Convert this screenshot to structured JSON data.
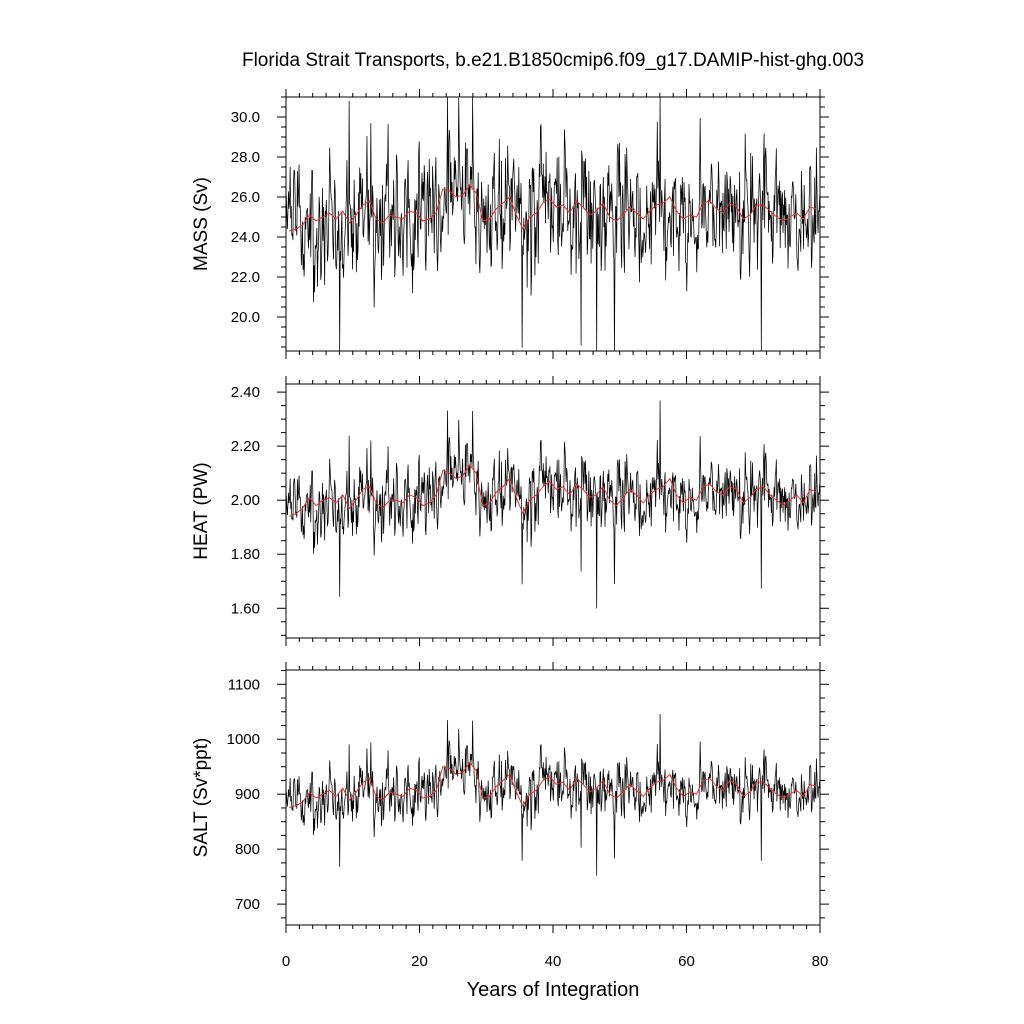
{
  "chart_data": {
    "type": "line",
    "title": "Florida Strait Transports, b.e21.B1850cmip6.f09_g17.DAMIP-hist-ghg.003",
    "xlabel": "Years of Integration",
    "xlim": [
      0,
      80
    ],
    "xticks": [
      0,
      20,
      40,
      60,
      80
    ],
    "xtick_labels": [
      "0",
      "20",
      "40",
      "60",
      "80"
    ],
    "grid": false,
    "colors": {
      "monthly": "#000000",
      "annual_mean": "#e03030"
    },
    "panels": [
      {
        "ylabel": "MASS (Sv)",
        "ylim": [
          18.3,
          31.0
        ],
        "yticks": [
          20,
          22,
          24,
          26,
          28,
          30
        ],
        "ytick_labels": [
          "20.0",
          "22.0",
          "24.0",
          "26.0",
          "28.0",
          "30.0"
        ],
        "annual_mean": [
          24.3,
          24.4,
          24.6,
          25.1,
          24.8,
          25.0,
          25.2,
          24.9,
          25.3,
          24.7,
          25.1,
          25.6,
          25.8,
          24.9,
          24.7,
          25.1,
          25.0,
          24.9,
          25.3,
          25.2,
          24.8,
          24.9,
          25.2,
          26.4,
          26.3,
          26.0,
          26.1,
          26.6,
          26.2,
          24.8,
          24.9,
          25.4,
          25.7,
          26.0,
          25.1,
          24.4,
          25.0,
          25.2,
          25.7,
          25.9,
          25.5,
          25.6,
          25.2,
          25.8,
          25.5,
          25.1,
          25.3,
          25.7,
          25.0,
          24.8,
          25.1,
          25.5,
          25.2,
          24.9,
          25.3,
          25.6,
          25.7,
          26.0,
          25.3,
          24.9,
          25.1,
          25.0,
          25.7,
          25.8,
          25.4,
          25.2,
          25.7,
          25.5,
          24.9,
          25.1,
          25.6,
          25.6,
          25.3,
          25.0,
          24.8,
          25.0,
          25.2,
          24.9,
          25.5,
          25.4
        ]
      },
      {
        "ylabel": "HEAT (PW)",
        "ylim": [
          1.49,
          2.43
        ],
        "yticks": [
          1.6,
          1.8,
          2.0,
          2.2,
          2.4
        ],
        "ytick_labels": [
          "1.60",
          "1.80",
          "2.00",
          "2.20",
          "2.40"
        ],
        "annual_mean": [
          1.94,
          1.95,
          1.97,
          2.01,
          1.98,
          2.0,
          2.01,
          1.99,
          2.02,
          1.97,
          2.0,
          2.04,
          2.05,
          1.99,
          1.97,
          2.0,
          2.0,
          1.99,
          2.02,
          2.01,
          1.98,
          1.99,
          2.02,
          2.11,
          2.1,
          2.08,
          2.09,
          2.13,
          2.1,
          1.98,
          1.99,
          2.03,
          2.05,
          2.08,
          2.01,
          1.95,
          2.0,
          2.02,
          2.05,
          2.07,
          2.04,
          2.05,
          2.02,
          2.06,
          2.04,
          2.01,
          2.02,
          2.05,
          2.0,
          1.98,
          2.01,
          2.04,
          2.02,
          1.99,
          2.02,
          2.04,
          2.05,
          2.08,
          2.02,
          1.99,
          2.01,
          2.0,
          2.05,
          2.06,
          2.03,
          2.02,
          2.05,
          2.04,
          1.99,
          2.01,
          2.04,
          2.05,
          2.02,
          2.0,
          1.98,
          2.0,
          2.02,
          1.99,
          2.04,
          2.03
        ]
      },
      {
        "ylabel": "SALT (Sv*ppt)",
        "ylim": [
          662,
          1126
        ],
        "yticks": [
          700,
          800,
          900,
          1000,
          1100
        ],
        "ytick_labels": [
          "700",
          "800",
          "900",
          "1000",
          "1100"
        ],
        "annual_mean": [
          876,
          879,
          886,
          903,
          893,
          900,
          907,
          896,
          911,
          889,
          904,
          921,
          929,
          896,
          889,
          904,
          900,
          896,
          911,
          907,
          893,
          896,
          907,
          950,
          947,
          936,
          940,
          958,
          943,
          893,
          896,
          914,
          925,
          936,
          904,
          878,
          900,
          907,
          925,
          932,
          918,
          922,
          907,
          929,
          918,
          904,
          911,
          925,
          900,
          893,
          904,
          918,
          907,
          896,
          911,
          922,
          925,
          936,
          911,
          896,
          904,
          900,
          925,
          929,
          914,
          907,
          925,
          918,
          896,
          904,
          922,
          922,
          911,
          900,
          893,
          900,
          907,
          896,
          918,
          914
        ]
      }
    ]
  }
}
